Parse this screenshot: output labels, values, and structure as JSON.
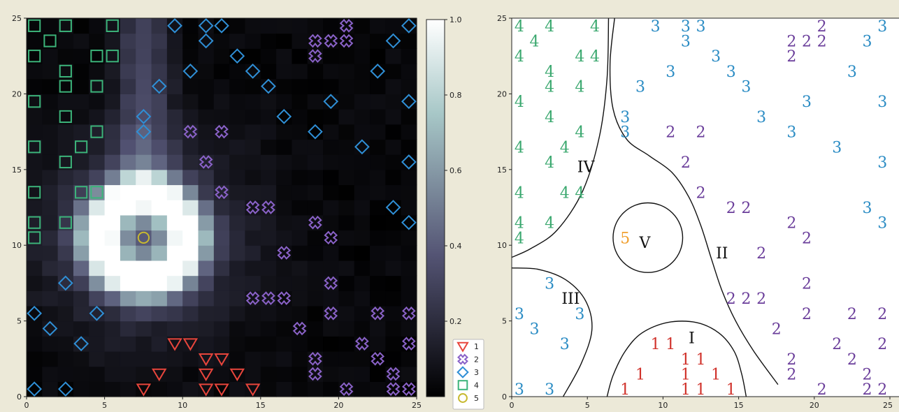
{
  "chart_data": [
    {
      "type": "heatmap",
      "title": "",
      "xlim": [
        0,
        25
      ],
      "ylim": [
        0,
        25
      ],
      "xticks": [
        "0",
        "5",
        "10",
        "15",
        "20",
        "25"
      ],
      "yticks": [
        "0",
        "5",
        "10",
        "15",
        "20",
        "25"
      ],
      "grid": false,
      "colorbar": {
        "range": [
          0,
          1
        ],
        "ticks": [
          "0.2",
          "0.4",
          "0.6",
          "0.8",
          "1.0"
        ],
        "colormap": "bone"
      },
      "heat_field": {
        "ring": {
          "center": [
            7.5,
            10.5
          ],
          "radius": 2.8,
          "width": 1.4,
          "peak": 0.9
        },
        "halo": {
          "center": [
            7.5,
            10.5
          ],
          "sigma": 4.2,
          "peak": 0.35
        },
        "tail": {
          "x_center": 7.5,
          "x_sigma": 1.2,
          "y_from": 13,
          "y_to": 25,
          "peak": 0.28
        }
      },
      "legend": {
        "position": "lower-right",
        "entries": [
          {
            "label": "1",
            "marker": "triangle-down",
            "color": "#e8453c"
          },
          {
            "label": "2",
            "marker": "x",
            "color": "#8a62c8"
          },
          {
            "label": "3",
            "marker": "diamond",
            "color": "#2f8fd6"
          },
          {
            "label": "4",
            "marker": "square",
            "color": "#3cb47a"
          },
          {
            "label": "5",
            "marker": "circle",
            "color": "#c7b930"
          }
        ]
      },
      "series": [
        {
          "name": "1",
          "points": [
            [
              7.5,
              0.5
            ],
            [
              8.5,
              1.5
            ],
            [
              9.5,
              3.5
            ],
            [
              10.5,
              3.5
            ],
            [
              11.5,
              0.5
            ],
            [
              11.5,
              1.5
            ],
            [
              11.5,
              2.5
            ],
            [
              12.5,
              2.5
            ],
            [
              12.5,
              0.5
            ],
            [
              13.5,
              1.5
            ],
            [
              14.5,
              0.5
            ]
          ]
        },
        {
          "name": "2",
          "points": [
            [
              10.5,
              17.5
            ],
            [
              12.5,
              17.5
            ],
            [
              11.5,
              15.5
            ],
            [
              12.5,
              13.5
            ],
            [
              14.5,
              12.5
            ],
            [
              15.5,
              12.5
            ],
            [
              18.5,
              11.5
            ],
            [
              19.5,
              10.5
            ],
            [
              16.5,
              9.5
            ],
            [
              19.5,
              7.5
            ],
            [
              14.5,
              6.5
            ],
            [
              15.5,
              6.5
            ],
            [
              16.5,
              6.5
            ],
            [
              19.5,
              5.5
            ],
            [
              22.5,
              5.5
            ],
            [
              24.5,
              5.5
            ],
            [
              17.5,
              4.5
            ],
            [
              21.5,
              3.5
            ],
            [
              24.5,
              3.5
            ],
            [
              22.5,
              2.5
            ],
            [
              18.5,
              2.5
            ],
            [
              18.5,
              1.5
            ],
            [
              23.5,
              1.5
            ],
            [
              20.5,
              0.5
            ],
            [
              23.5,
              0.5
            ],
            [
              24.5,
              0.5
            ],
            [
              18.5,
              23.5
            ],
            [
              19.5,
              23.5
            ],
            [
              20.5,
              23.5
            ],
            [
              20.5,
              24.5
            ],
            [
              18.5,
              22.5
            ]
          ]
        },
        {
          "name": "3",
          "points": [
            [
              9.5,
              24.5
            ],
            [
              11.5,
              24.5
            ],
            [
              12.5,
              24.5
            ],
            [
              11.5,
              23.5
            ],
            [
              13.5,
              22.5
            ],
            [
              14.5,
              21.5
            ],
            [
              10.5,
              21.5
            ],
            [
              15.5,
              20.5
            ],
            [
              8.5,
              20.5
            ],
            [
              16.5,
              18.5
            ],
            [
              7.5,
              18.5
            ],
            [
              7.5,
              17.5
            ],
            [
              18.5,
              17.5
            ],
            [
              19.5,
              19.5
            ],
            [
              21.5,
              16.5
            ],
            [
              22.5,
              21.5
            ],
            [
              23.5,
              23.5
            ],
            [
              24.5,
              24.5
            ],
            [
              24.5,
              19.5
            ],
            [
              24.5,
              15.5
            ],
            [
              23.5,
              12.5
            ],
            [
              24.5,
              11.5
            ],
            [
              2.5,
              7.5
            ],
            [
              0.5,
              5.5
            ],
            [
              1.5,
              4.5
            ],
            [
              4.5,
              5.5
            ],
            [
              3.5,
              3.5
            ],
            [
              0.5,
              0.5
            ],
            [
              2.5,
              0.5
            ]
          ]
        },
        {
          "name": "4",
          "points": [
            [
              0.5,
              24.5
            ],
            [
              2.5,
              24.5
            ],
            [
              5.5,
              24.5
            ],
            [
              1.5,
              23.5
            ],
            [
              0.5,
              22.5
            ],
            [
              4.5,
              22.5
            ],
            [
              5.5,
              22.5
            ],
            [
              2.5,
              21.5
            ],
            [
              2.5,
              20.5
            ],
            [
              4.5,
              20.5
            ],
            [
              0.5,
              19.5
            ],
            [
              2.5,
              18.5
            ],
            [
              4.5,
              17.5
            ],
            [
              0.5,
              16.5
            ],
            [
              3.5,
              16.5
            ],
            [
              2.5,
              15.5
            ],
            [
              0.5,
              13.5
            ],
            [
              3.5,
              13.5
            ],
            [
              4.5,
              13.5
            ],
            [
              0.5,
              11.5
            ],
            [
              2.5,
              11.5
            ],
            [
              0.5,
              10.5
            ]
          ]
        },
        {
          "name": "5",
          "points": [
            [
              7.5,
              10.5
            ]
          ]
        }
      ]
    },
    {
      "type": "scatter",
      "title": "",
      "xlim": [
        0,
        25
      ],
      "ylim": [
        0,
        25
      ],
      "xticks": [
        "0",
        "5",
        "10",
        "15",
        "20",
        "25"
      ],
      "yticks": [
        "0",
        "5",
        "10",
        "15",
        "20",
        "25"
      ],
      "grid": false,
      "region_labels": [
        {
          "text": "I",
          "x": 11.9,
          "y": 3.9
        },
        {
          "text": "II",
          "x": 13.9,
          "y": 9.5
        },
        {
          "text": "III",
          "x": 3.9,
          "y": 6.5
        },
        {
          "text": "IV",
          "x": 4.9,
          "y": 15.2
        },
        {
          "text": "V",
          "x": 8.8,
          "y": 10.2
        }
      ],
      "boundaries": [
        {
          "name": "I",
          "points": [
            [
              6.3,
              0
            ],
            [
              6.7,
              1.4
            ],
            [
              7.5,
              3
            ],
            [
              8.6,
              4.2
            ],
            [
              10.3,
              4.9
            ],
            [
              12.2,
              4.9
            ],
            [
              13.7,
              4.2
            ],
            [
              14.7,
              3
            ],
            [
              15.2,
              1.5
            ],
            [
              15.5,
              0
            ]
          ]
        },
        {
          "name": "II",
          "points": [
            [
              6.8,
              25
            ],
            [
              6.5,
              22
            ],
            [
              6.7,
              19
            ],
            [
              7.6,
              17
            ],
            [
              9.1,
              15.9
            ],
            [
              10.6,
              14.8
            ],
            [
              11.7,
              13.2
            ],
            [
              12.5,
              11.3
            ],
            [
              13.2,
              9.1
            ],
            [
              13.9,
              7
            ],
            [
              14.8,
              5
            ],
            [
              16,
              3
            ],
            [
              17.6,
              0.8
            ]
          ]
        },
        {
          "name": "III",
          "points": [
            [
              0,
              8.5
            ],
            [
              1.8,
              8.4
            ],
            [
              3.6,
              7.7
            ],
            [
              4.9,
              6.3
            ],
            [
              5.3,
              4.4
            ],
            [
              4.6,
              2.2
            ],
            [
              3.4,
              0
            ]
          ]
        },
        {
          "name": "IV",
          "points": [
            [
              6.4,
              25
            ],
            [
              6.3,
              21
            ],
            [
              5.8,
              17.2
            ],
            [
              4.7,
              13.6
            ],
            [
              3,
              11
            ],
            [
              1.3,
              9.8
            ],
            [
              0,
              9.2
            ]
          ]
        },
        {
          "name": "V",
          "circle": [
            9.0,
            10.5,
            2.3
          ]
        }
      ],
      "labels_by_class": [
        {
          "class": "1",
          "color": "#d0312a",
          "points": [
            [
              7.5,
              0.5
            ],
            [
              8.5,
              1.5
            ],
            [
              9.5,
              3.5
            ],
            [
              10.5,
              3.5
            ],
            [
              11.5,
              0.5
            ],
            [
              11.5,
              1.5
            ],
            [
              11.5,
              2.5
            ],
            [
              12.5,
              2.5
            ],
            [
              12.5,
              0.5
            ],
            [
              13.5,
              1.5
            ],
            [
              14.5,
              0.5
            ]
          ]
        },
        {
          "class": "2",
          "color": "#6a3d9a",
          "points": [
            [
              10.5,
              17.5
            ],
            [
              12.5,
              17.5
            ],
            [
              11.5,
              15.5
            ],
            [
              12.5,
              13.5
            ],
            [
              14.5,
              12.5
            ],
            [
              15.5,
              12.5
            ],
            [
              18.5,
              11.5
            ],
            [
              19.5,
              10.5
            ],
            [
              16.5,
              9.5
            ],
            [
              19.5,
              7.5
            ],
            [
              14.5,
              6.5
            ],
            [
              15.5,
              6.5
            ],
            [
              16.5,
              6.5
            ],
            [
              19.5,
              5.5
            ],
            [
              22.5,
              5.5
            ],
            [
              24.5,
              5.5
            ],
            [
              17.5,
              4.5
            ],
            [
              21.5,
              3.5
            ],
            [
              24.5,
              3.5
            ],
            [
              22.5,
              2.5
            ],
            [
              18.5,
              2.5
            ],
            [
              18.5,
              1.5
            ],
            [
              23.5,
              1.5
            ],
            [
              20.5,
              0.5
            ],
            [
              23.5,
              0.5
            ],
            [
              24.5,
              0.5
            ],
            [
              18.5,
              23.5
            ],
            [
              19.5,
              23.5
            ],
            [
              20.5,
              23.5
            ],
            [
              20.5,
              24.5
            ],
            [
              18.5,
              22.5
            ]
          ]
        },
        {
          "class": "3",
          "color": "#2b8cc4",
          "points": [
            [
              9.5,
              24.5
            ],
            [
              11.5,
              24.5
            ],
            [
              12.5,
              24.5
            ],
            [
              11.5,
              23.5
            ],
            [
              13.5,
              22.5
            ],
            [
              14.5,
              21.5
            ],
            [
              10.5,
              21.5
            ],
            [
              15.5,
              20.5
            ],
            [
              8.5,
              20.5
            ],
            [
              16.5,
              18.5
            ],
            [
              7.5,
              18.5
            ],
            [
              7.5,
              17.5
            ],
            [
              18.5,
              17.5
            ],
            [
              19.5,
              19.5
            ],
            [
              21.5,
              16.5
            ],
            [
              22.5,
              21.5
            ],
            [
              23.5,
              23.5
            ],
            [
              24.5,
              24.5
            ],
            [
              24.5,
              19.5
            ],
            [
              24.5,
              15.5
            ],
            [
              23.5,
              12.5
            ],
            [
              24.5,
              11.5
            ],
            [
              2.5,
              7.5
            ],
            [
              0.5,
              5.5
            ],
            [
              1.5,
              4.5
            ],
            [
              4.5,
              5.5
            ],
            [
              3.5,
              3.5
            ],
            [
              0.5,
              0.5
            ],
            [
              2.5,
              0.5
            ]
          ]
        },
        {
          "class": "4",
          "color": "#3ba86f",
          "points": [
            [
              0.5,
              24.5
            ],
            [
              2.5,
              24.5
            ],
            [
              5.5,
              24.5
            ],
            [
              1.5,
              23.5
            ],
            [
              0.5,
              22.5
            ],
            [
              4.5,
              22.5
            ],
            [
              5.5,
              22.5
            ],
            [
              2.5,
              21.5
            ],
            [
              2.5,
              20.5
            ],
            [
              4.5,
              20.5
            ],
            [
              0.5,
              19.5
            ],
            [
              2.5,
              18.5
            ],
            [
              4.5,
              17.5
            ],
            [
              0.5,
              16.5
            ],
            [
              3.5,
              16.5
            ],
            [
              2.5,
              15.5
            ],
            [
              0.5,
              13.5
            ],
            [
              3.5,
              13.5
            ],
            [
              4.5,
              13.5
            ],
            [
              0.5,
              11.5
            ],
            [
              2.5,
              11.5
            ],
            [
              0.5,
              10.5
            ]
          ]
        },
        {
          "class": "5",
          "color": "#f0a030",
          "points": [
            [
              7.5,
              10.5
            ]
          ]
        }
      ]
    }
  ]
}
